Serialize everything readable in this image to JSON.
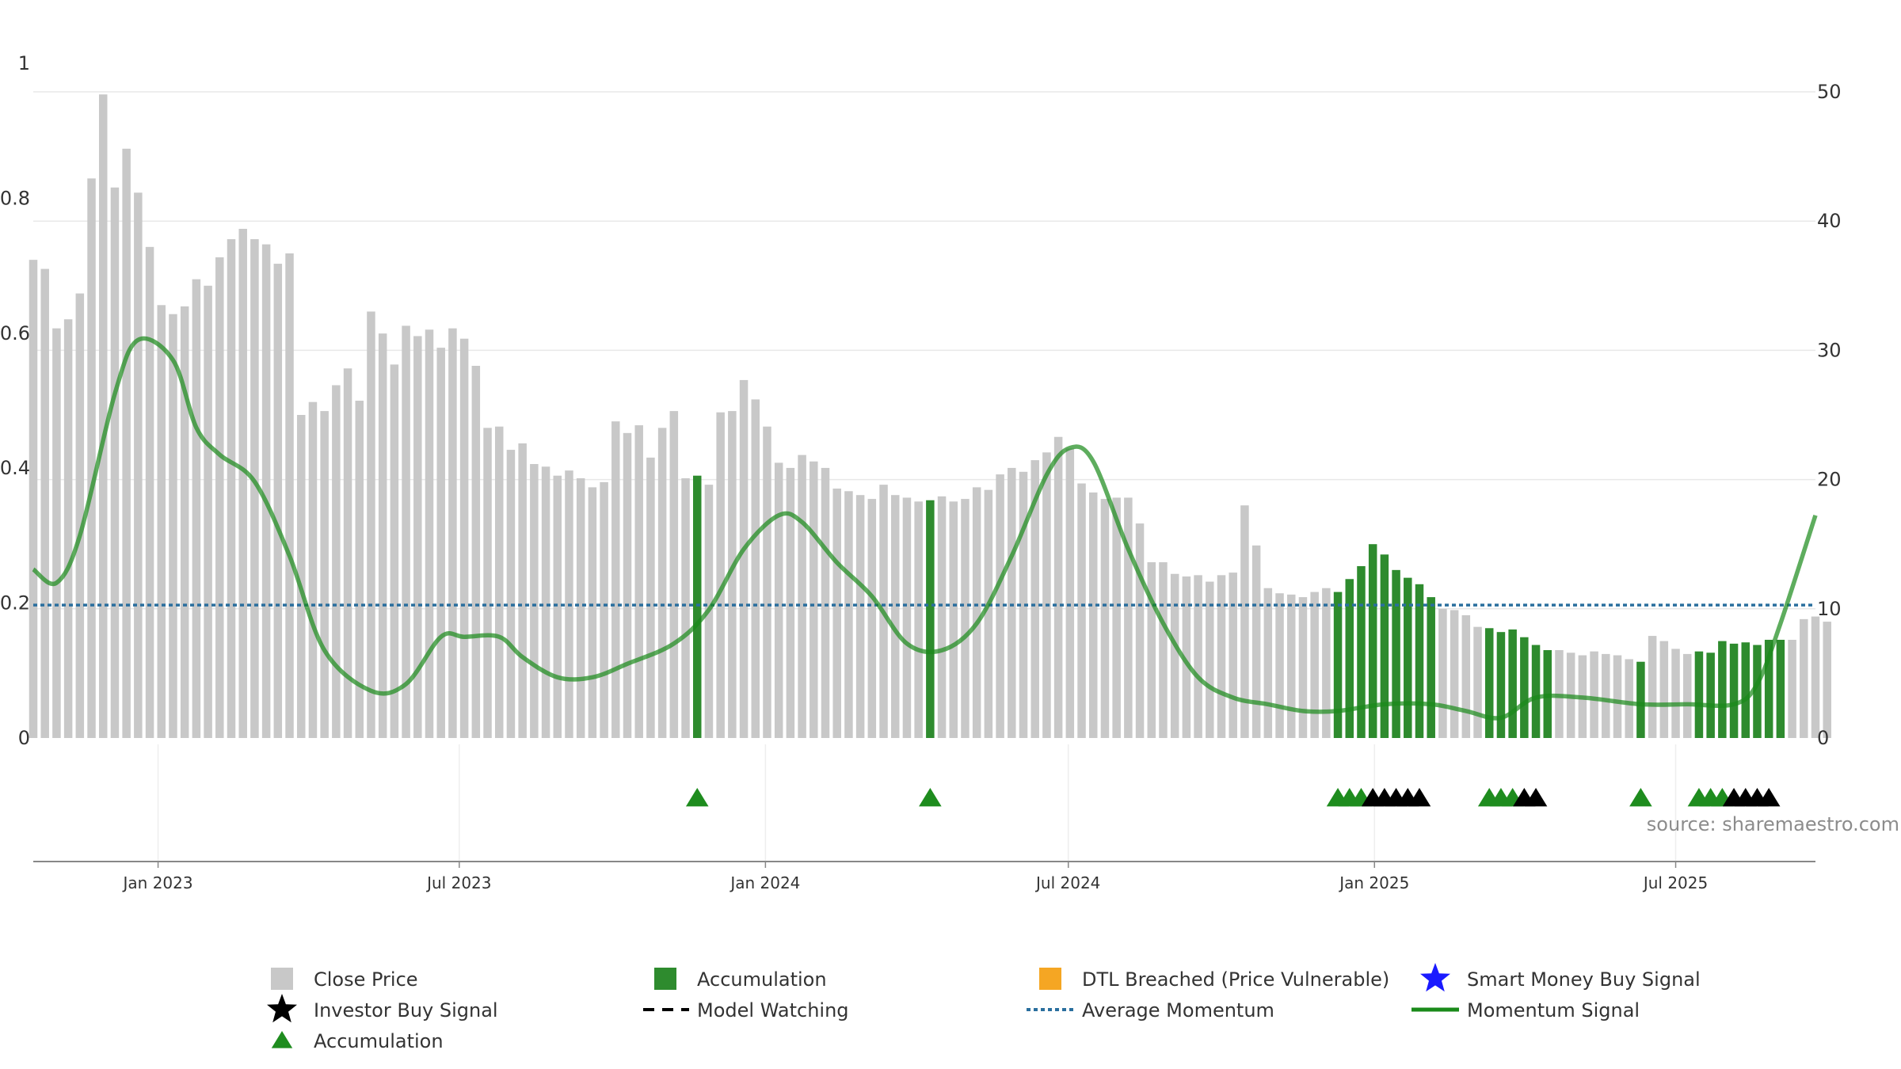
{
  "chart_data": {
    "type": "bar",
    "source": "source: sharemaestro.com",
    "left_axis": {
      "ticks": [
        0,
        0.2,
        0.4,
        0.6,
        0.8,
        1
      ],
      "tick_labels": [
        "0",
        "0.2",
        "0.4",
        "0.6",
        "0.8",
        "1"
      ],
      "ylim": [
        0,
        1
      ]
    },
    "right_axis": {
      "ticks": [
        0,
        10,
        20,
        30,
        40,
        50
      ],
      "tick_labels": [
        "0",
        "10",
        "20",
        "30",
        "40",
        "50"
      ],
      "ylim": [
        0,
        50
      ]
    },
    "x_axis": {
      "type": "date",
      "range": [
        "2022-10-18",
        "2025-09-23"
      ],
      "ticks": [
        {
          "date": "2023-01-01",
          "label": "Jan 2023"
        },
        {
          "date": "2023-07-01",
          "label": "Jul 2023"
        },
        {
          "date": "2024-01-01",
          "label": "Jan 2024"
        },
        {
          "date": "2024-07-01",
          "label": "Jul 2024"
        },
        {
          "date": "2025-01-01",
          "label": "Jan 2025"
        },
        {
          "date": "2025-07-01",
          "label": "Jul 2025"
        }
      ]
    },
    "colors": {
      "close_price": "#c8c8c8",
      "accumulation": "#2e8b2e",
      "dtl_breached": "#f5a623",
      "smart_money": "#1a1aff",
      "investor_buy": "#000000",
      "accumulation_marker": "#1e8c1e",
      "average_momentum": "#2a6f9e",
      "momentum_signal": "#1a8a1a",
      "model_watching": "#000000",
      "grid": "#e8e8e8"
    },
    "close_price": {
      "start_date": "2022-10-18",
      "interval": "weekly",
      "values": [
        37.0,
        36.3,
        31.7,
        32.4,
        34.4,
        43.3,
        49.8,
        42.6,
        45.6,
        42.2,
        38.0,
        33.5,
        32.8,
        33.4,
        35.5,
        35.0,
        37.2,
        38.6,
        39.4,
        38.6,
        38.2,
        36.7,
        37.5,
        25.0,
        26.0,
        25.3,
        27.3,
        28.6,
        26.1,
        33.0,
        31.3,
        28.9,
        31.9,
        31.1,
        31.6,
        30.2,
        31.7,
        30.9,
        28.8,
        24.0,
        24.1,
        22.3,
        22.8,
        21.2,
        21.0,
        20.3,
        20.7,
        20.1,
        19.4,
        19.8,
        24.5,
        23.6,
        24.2,
        21.7,
        24.0,
        25.3,
        20.1,
        20.3,
        19.6,
        25.2,
        25.3,
        27.7,
        26.2,
        24.1,
        21.3,
        20.9,
        21.9,
        21.4,
        20.9,
        19.3,
        19.1,
        18.8,
        18.5,
        19.6,
        18.8,
        18.6,
        18.3,
        18.4,
        18.7,
        18.3,
        18.5,
        19.4,
        19.2,
        20.4,
        20.9,
        20.6,
        21.5,
        22.1,
        23.3,
        22.4,
        19.7,
        19.0,
        18.5,
        18.6,
        18.6,
        16.6,
        13.6,
        13.6,
        12.7,
        12.5,
        12.6,
        12.1,
        12.6,
        12.8,
        18.0,
        14.9,
        11.6,
        11.2,
        11.1,
        10.9,
        11.3,
        11.6,
        11.3,
        12.3,
        13.3,
        15.0,
        14.2,
        13.0,
        12.4,
        11.9,
        10.9,
        10.0,
        9.9,
        9.5,
        8.6,
        8.5,
        8.2,
        8.4,
        7.8,
        7.2,
        6.8,
        6.8,
        6.6,
        6.4,
        6.7,
        6.5,
        6.4,
        6.1,
        5.9,
        7.9,
        7.5,
        6.9,
        6.5,
        6.7,
        6.6,
        7.5,
        7.3,
        7.4,
        7.2,
        7.6,
        7.6,
        7.6,
        9.2,
        9.4,
        9.0
      ]
    },
    "accumulation_weeks": [
      "2023-11-21",
      "2024-04-09",
      "2024-12-10",
      "2024-12-17",
      "2024-12-24",
      "2024-12-31",
      "2025-01-07",
      "2025-01-14",
      "2025-01-21",
      "2025-01-28",
      "2025-02-04",
      "2025-03-11",
      "2025-03-18",
      "2025-03-25",
      "2025-04-01",
      "2025-04-08",
      "2025-04-15",
      "2025-06-10",
      "2025-07-15",
      "2025-07-22",
      "2025-07-29",
      "2025-08-05",
      "2025-08-12",
      "2025-08-19",
      "2025-08-26",
      "2025-09-02"
    ],
    "accumulation_markers": [
      "2023-11-21",
      "2024-04-09",
      "2024-12-10",
      "2024-12-17",
      "2024-12-24",
      "2025-03-11",
      "2025-03-18",
      "2025-03-25",
      "2025-06-10",
      "2025-07-15",
      "2025-07-22",
      "2025-07-29"
    ],
    "investor_buy_markers": [
      "2024-12-31",
      "2025-01-07",
      "2025-01-14",
      "2025-01-21",
      "2025-01-28",
      "2025-04-01",
      "2025-04-08",
      "2025-08-05",
      "2025-08-12",
      "2025-08-19",
      "2025-08-26"
    ],
    "average_momentum": 0.197,
    "momentum_signal": {
      "x": [
        "2022-10-18",
        "2022-11-01",
        "2022-11-15",
        "2022-12-06",
        "2022-12-20",
        "2023-01-10",
        "2023-01-24",
        "2023-02-07",
        "2023-02-28",
        "2023-03-21",
        "2023-04-11",
        "2023-05-09",
        "2023-05-30",
        "2023-06-20",
        "2023-07-04",
        "2023-07-25",
        "2023-08-08",
        "2023-08-29",
        "2023-09-19",
        "2023-10-10",
        "2023-11-07",
        "2023-11-28",
        "2023-12-19",
        "2024-01-09",
        "2024-01-23",
        "2024-02-13",
        "2024-03-05",
        "2024-03-26",
        "2024-04-16",
        "2024-05-07",
        "2024-05-28",
        "2024-06-18",
        "2024-07-02",
        "2024-07-16",
        "2024-08-06",
        "2024-08-27",
        "2024-09-17",
        "2024-10-08",
        "2024-10-29",
        "2024-11-19",
        "2024-12-10",
        "2025-01-07",
        "2025-02-04",
        "2025-02-25",
        "2025-03-18",
        "2025-04-08",
        "2025-05-06",
        "2025-06-10",
        "2025-07-08",
        "2025-08-05",
        "2025-08-19",
        "2025-09-02",
        "2025-09-23"
      ],
      "y": [
        0.25,
        0.23,
        0.3,
        0.51,
        0.59,
        0.56,
        0.46,
        0.42,
        0.38,
        0.27,
        0.13,
        0.07,
        0.08,
        0.15,
        0.15,
        0.15,
        0.12,
        0.09,
        0.09,
        0.11,
        0.14,
        0.19,
        0.28,
        0.33,
        0.32,
        0.26,
        0.21,
        0.14,
        0.13,
        0.17,
        0.27,
        0.39,
        0.43,
        0.41,
        0.28,
        0.17,
        0.09,
        0.06,
        0.05,
        0.04,
        0.04,
        0.05,
        0.05,
        0.04,
        0.03,
        0.06,
        0.06,
        0.05,
        0.05,
        0.05,
        0.08,
        0.17,
        0.33
      ]
    },
    "legend": [
      {
        "key": "close_price",
        "label": "Close Price",
        "symbol": "square"
      },
      {
        "key": "accumulation",
        "label": "Accumulation",
        "symbol": "square"
      },
      {
        "key": "dtl_breached",
        "label": "DTL Breached (Price Vulnerable)",
        "symbol": "square"
      },
      {
        "key": "smart_money",
        "label": "Smart Money Buy Signal",
        "symbol": "star"
      },
      {
        "key": "investor_buy",
        "label": "Investor Buy Signal",
        "symbol": "star"
      },
      {
        "key": "model_watching",
        "label": "Model Watching",
        "symbol": "dash"
      },
      {
        "key": "average_momentum",
        "label": "Average Momentum",
        "symbol": "dotted"
      },
      {
        "key": "momentum_signal",
        "label": "Momentum Signal",
        "symbol": "line"
      },
      {
        "key": "accumulation_marker",
        "label": "Accumulation",
        "symbol": "triangle"
      }
    ]
  }
}
